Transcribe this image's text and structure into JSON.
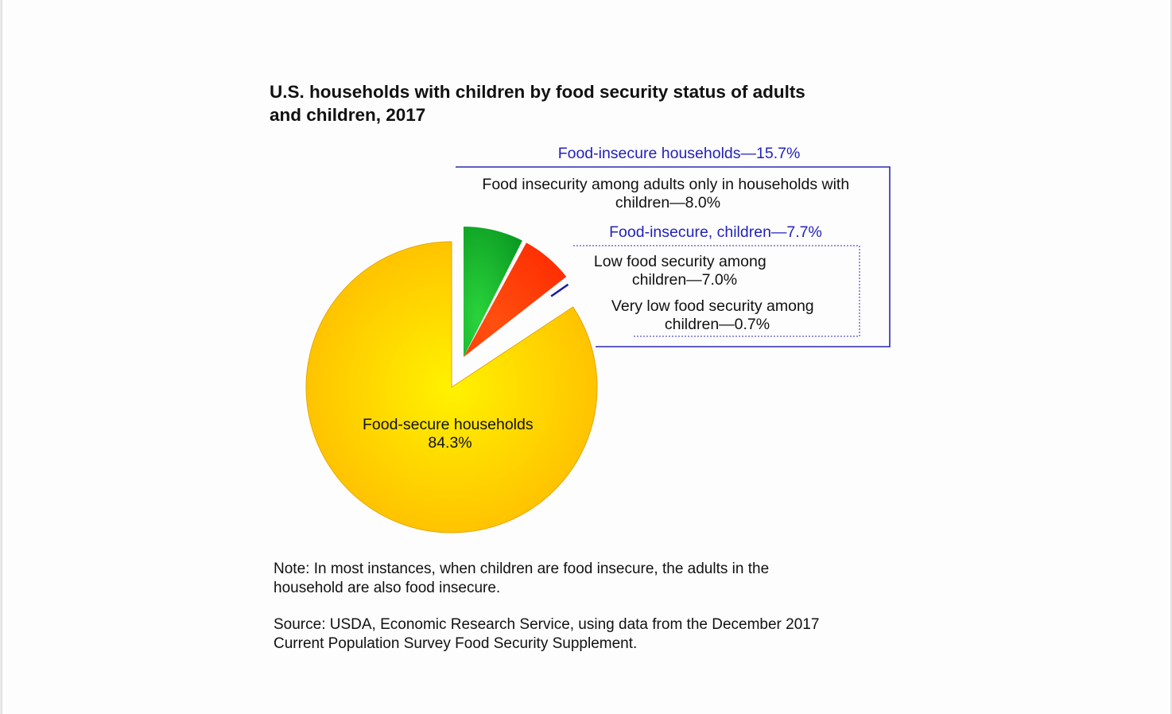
{
  "chart_data": {
    "type": "pie",
    "title_lines": [
      "U.S. households with children by food security status of adults",
      "and children, 2017"
    ],
    "slices": [
      {
        "key": "secure",
        "value": 84.3,
        "color": "#ffd000",
        "label_lines": [
          "Food-secure households",
          "84.3%"
        ]
      },
      {
        "key": "adults_only",
        "value": 8.0,
        "color": "#12a82a",
        "label_lines": [
          "Food insecurity among adults only in households with",
          "children—8.0%"
        ]
      },
      {
        "key": "low_children",
        "value": 7.0,
        "color": "#ff3300",
        "label_lines": [
          "Low food security among",
          "children—7.0%"
        ]
      },
      {
        "key": "very_low_children",
        "value": 0.7,
        "color": "#1a1aa6",
        "label_lines": [
          "Very low food security among",
          "children—0.7%"
        ]
      }
    ],
    "group_labels": {
      "food_insecure": "Food-insecure households—15.7%",
      "insecure_children": "Food-insecure, children—7.7%"
    },
    "colors": {
      "group_label": "#2222bb",
      "group_box": "#2a2ab0"
    }
  },
  "notes": {
    "note_lines": [
      "Note: In most instances, when children are food insecure, the adults in the",
      "household are also food insecure."
    ],
    "source_lines": [
      "Source: USDA, Economic Research Service, using data from the December 2017",
      "Current Population Survey Food Security Supplement."
    ]
  }
}
